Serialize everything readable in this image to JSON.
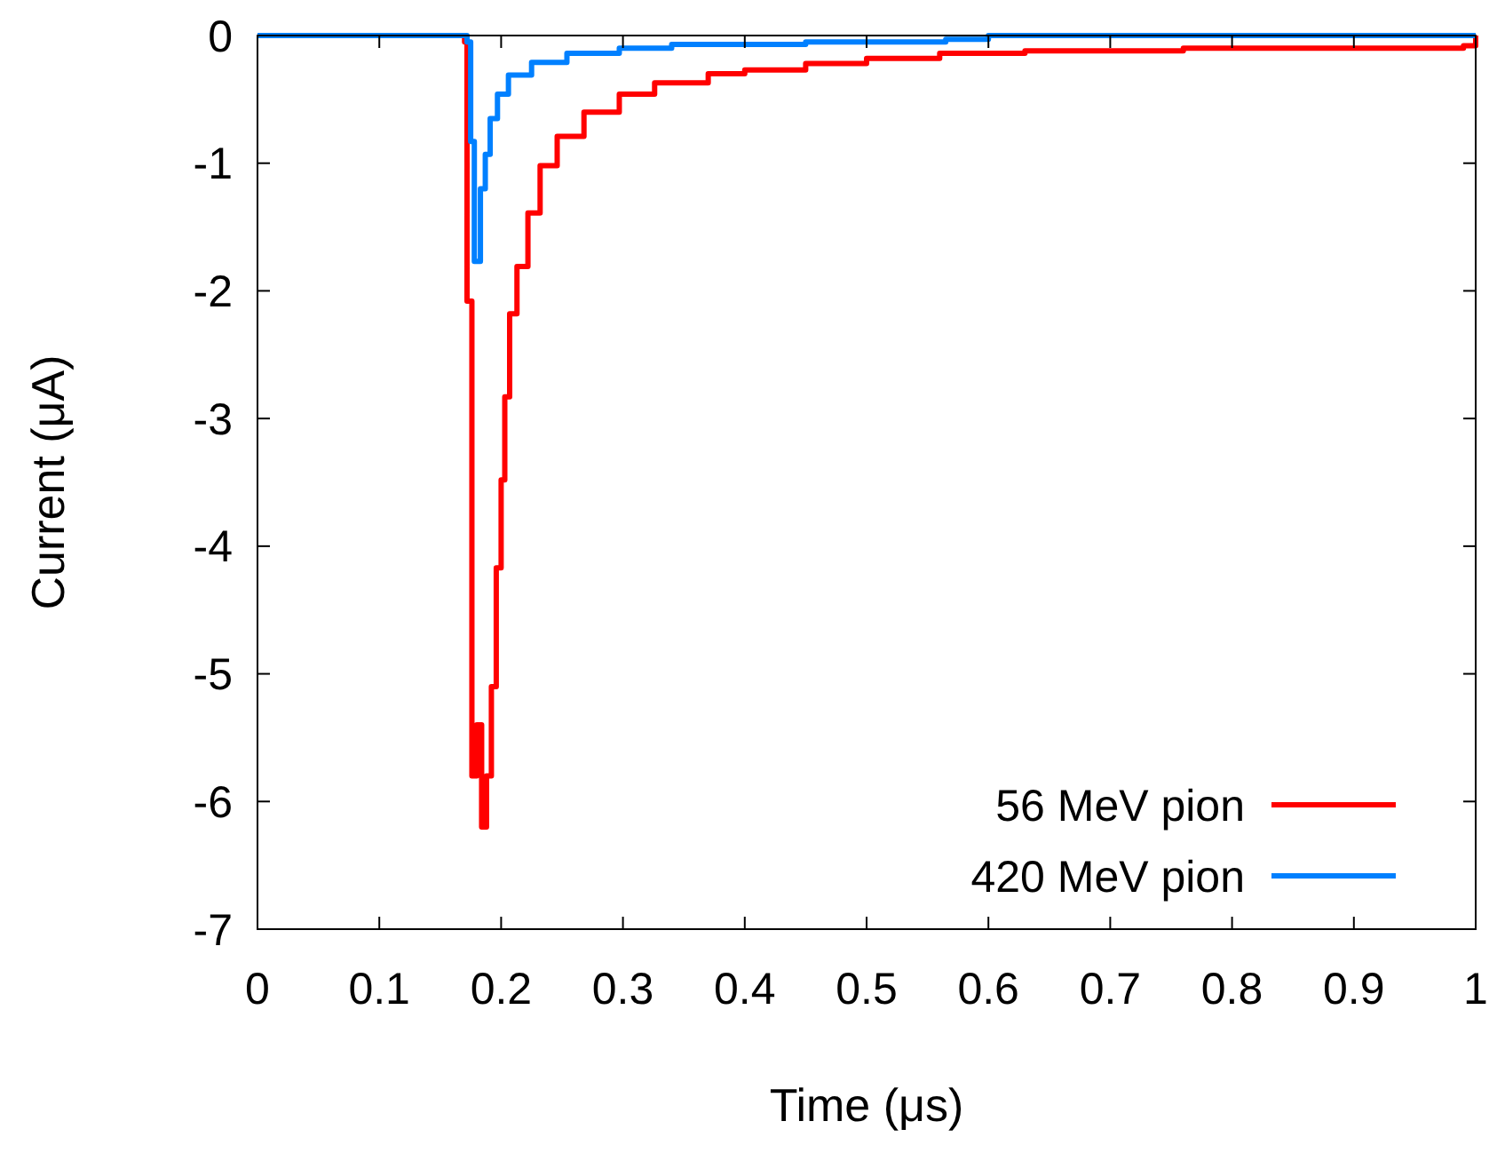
{
  "chart_data": {
    "type": "step",
    "xlabel": "Time (μs)",
    "ylabel": "Current (μA)",
    "xlim": [
      0,
      1
    ],
    "ylim": [
      -7,
      0
    ],
    "xticks": [
      0,
      0.1,
      0.2,
      0.3,
      0.4,
      0.5,
      0.6,
      0.7,
      0.8,
      0.9,
      1
    ],
    "yticks": [
      0,
      -1,
      -2,
      -3,
      -4,
      -5,
      -6,
      -7
    ],
    "grid": false,
    "legend": "bottom right",
    "line_style": "solid",
    "series": [
      {
        "name": "56 MeV pion",
        "color": "#ff0000",
        "x": [
          0,
          0.17,
          0.172,
          0.176,
          0.18,
          0.184,
          0.188,
          0.192,
          0.196,
          0.2,
          0.203,
          0.207,
          0.213,
          0.222,
          0.232,
          0.246,
          0.268,
          0.297,
          0.326,
          0.37,
          0.4,
          0.45,
          0.5,
          0.56,
          0.63,
          0.76,
          0.99,
          1
        ],
        "values": [
          0,
          -0.05,
          -2.08,
          -5.8,
          -5.4,
          -6.2,
          -5.8,
          -5.1,
          -4.17,
          -3.48,
          -2.83,
          -2.18,
          -1.81,
          -1.39,
          -1.02,
          -0.79,
          -0.6,
          -0.46,
          -0.37,
          -0.3,
          -0.27,
          -0.22,
          -0.18,
          -0.14,
          -0.12,
          -0.1,
          -0.08,
          0
        ]
      },
      {
        "name": "420 MeV pion",
        "color": "#0080ff",
        "x": [
          0,
          0.172,
          0.175,
          0.178,
          0.183,
          0.187,
          0.191,
          0.197,
          0.206,
          0.225,
          0.254,
          0.297,
          0.34,
          0.45,
          0.565,
          0.6,
          1
        ],
        "values": [
          0,
          -0.05,
          -0.83,
          -1.77,
          -1.2,
          -0.93,
          -0.65,
          -0.46,
          -0.31,
          -0.21,
          -0.14,
          -0.1,
          -0.07,
          -0.05,
          -0.03,
          0,
          0
        ]
      }
    ]
  }
}
